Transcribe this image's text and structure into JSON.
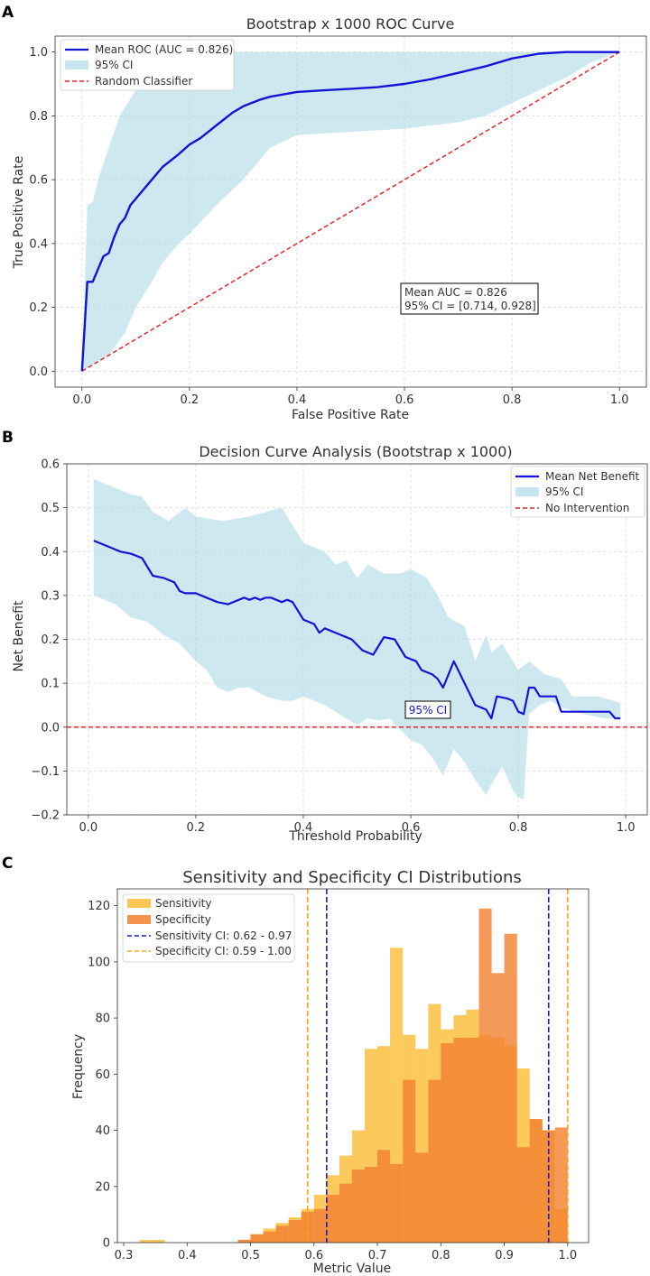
{
  "chart_data": [
    {
      "panel": "A",
      "type": "line",
      "title": "Bootstrap x 1000 ROC Curve",
      "xlabel": "False Positive Rate",
      "ylabel": "True Positive Rate",
      "xlim": [
        -0.05,
        1.05
      ],
      "ylim": [
        -0.05,
        1.05
      ],
      "xticks": [
        0.0,
        0.2,
        0.4,
        0.6,
        0.8,
        1.0
      ],
      "yticks": [
        0.0,
        0.2,
        0.4,
        0.6,
        0.8,
        1.0
      ],
      "tick_labels_x": [
        "0.0",
        "0.2",
        "0.4",
        "0.6",
        "0.8",
        "1.0"
      ],
      "tick_labels_y": [
        "0.0",
        "0.2",
        "0.4",
        "0.6",
        "0.8",
        "1.0"
      ],
      "legend": [
        "Mean ROC (AUC = 0.826)",
        "95% CI",
        "Random Classifier"
      ],
      "annotation": [
        "Mean AUC = 0.826",
        "95% CI = [0.714, 0.928]"
      ],
      "mean": {
        "x": [
          0,
          0.01,
          0.02,
          0.03,
          0.04,
          0.05,
          0.06,
          0.07,
          0.08,
          0.09,
          0.1,
          0.12,
          0.15,
          0.18,
          0.2,
          0.22,
          0.25,
          0.28,
          0.3,
          0.33,
          0.35,
          0.4,
          0.45,
          0.5,
          0.55,
          0.6,
          0.65,
          0.7,
          0.75,
          0.8,
          0.85,
          0.9,
          0.95,
          1.0
        ],
        "y": [
          0,
          0.28,
          0.28,
          0.32,
          0.36,
          0.37,
          0.42,
          0.46,
          0.48,
          0.52,
          0.54,
          0.58,
          0.64,
          0.68,
          0.71,
          0.73,
          0.77,
          0.81,
          0.83,
          0.85,
          0.86,
          0.875,
          0.88,
          0.885,
          0.89,
          0.9,
          0.915,
          0.935,
          0.955,
          0.98,
          0.995,
          1.0,
          1.0,
          1.0
        ]
      },
      "ci_upper": {
        "x": [
          0,
          0.01,
          0.02,
          0.03,
          0.05,
          0.07,
          0.1,
          0.13,
          0.15,
          0.2,
          0.25,
          0.3,
          0.4,
          0.6,
          0.8,
          1.0
        ],
        "y": [
          0,
          0.52,
          0.53,
          0.6,
          0.7,
          0.8,
          0.88,
          0.94,
          0.97,
          0.99,
          1.0,
          1.0,
          1.0,
          1.0,
          1.0,
          1.0
        ]
      },
      "ci_lower": {
        "x": [
          0,
          0.03,
          0.05,
          0.08,
          0.1,
          0.13,
          0.15,
          0.18,
          0.2,
          0.25,
          0.3,
          0.35,
          0.4,
          0.5,
          0.6,
          0.7,
          0.75,
          0.8,
          0.85,
          0.9,
          0.95,
          1.0
        ],
        "y": [
          0,
          0.03,
          0.05,
          0.12,
          0.2,
          0.28,
          0.34,
          0.4,
          0.43,
          0.52,
          0.6,
          0.7,
          0.74,
          0.75,
          0.76,
          0.78,
          0.8,
          0.84,
          0.88,
          0.92,
          0.97,
          1.0
        ]
      }
    },
    {
      "panel": "B",
      "type": "line",
      "title": "Decision Curve Analysis (Bootstrap x 1000)",
      "xlabel": "Threshold Probability",
      "ylabel": "Net Benefit",
      "xlim": [
        -0.04,
        1.04
      ],
      "ylim": [
        -0.2,
        0.6
      ],
      "xticks": [
        0.0,
        0.2,
        0.4,
        0.6,
        0.8,
        1.0
      ],
      "yticks": [
        -0.2,
        -0.1,
        0.0,
        0.1,
        0.2,
        0.3,
        0.4,
        0.5,
        0.6
      ],
      "tick_labels_x": [
        "0.0",
        "0.2",
        "0.4",
        "0.6",
        "0.8",
        "1.0"
      ],
      "tick_labels_y": [
        "−0.2",
        "−0.1",
        "0.0",
        "0.1",
        "0.2",
        "0.3",
        "0.4",
        "0.5",
        "0.6"
      ],
      "legend": [
        "Mean Net Benefit",
        "95% CI",
        "No Intervention"
      ],
      "annotation": "95% CI",
      "mean": {
        "x": [
          0.01,
          0.04,
          0.06,
          0.08,
          0.1,
          0.12,
          0.14,
          0.16,
          0.17,
          0.18,
          0.2,
          0.22,
          0.24,
          0.26,
          0.28,
          0.29,
          0.3,
          0.31,
          0.32,
          0.33,
          0.34,
          0.36,
          0.37,
          0.38,
          0.4,
          0.42,
          0.43,
          0.44,
          0.47,
          0.49,
          0.51,
          0.52,
          0.53,
          0.55,
          0.57,
          0.59,
          0.61,
          0.62,
          0.64,
          0.65,
          0.66,
          0.68,
          0.7,
          0.72,
          0.74,
          0.75,
          0.76,
          0.78,
          0.79,
          0.8,
          0.81,
          0.82,
          0.83,
          0.84,
          0.86,
          0.87,
          0.88,
          0.9,
          0.93,
          0.96,
          0.97,
          0.98,
          0.99
        ],
        "y": [
          0.425,
          0.41,
          0.4,
          0.395,
          0.385,
          0.345,
          0.34,
          0.33,
          0.31,
          0.305,
          0.305,
          0.295,
          0.285,
          0.28,
          0.29,
          0.295,
          0.29,
          0.295,
          0.29,
          0.295,
          0.295,
          0.285,
          0.29,
          0.285,
          0.245,
          0.235,
          0.215,
          0.225,
          0.21,
          0.2,
          0.175,
          0.17,
          0.165,
          0.205,
          0.2,
          0.16,
          0.15,
          0.13,
          0.12,
          0.11,
          0.09,
          0.15,
          0.1,
          0.05,
          0.04,
          0.02,
          0.07,
          0.065,
          0.06,
          0.035,
          0.03,
          0.09,
          0.09,
          0.07,
          0.07,
          0.07,
          0.035,
          0.035,
          0.035,
          0.035,
          0.035,
          0.02,
          0.02
        ]
      },
      "ci_upper": {
        "x": [
          0.01,
          0.04,
          0.08,
          0.1,
          0.12,
          0.15,
          0.18,
          0.2,
          0.25,
          0.3,
          0.33,
          0.36,
          0.38,
          0.4,
          0.44,
          0.46,
          0.48,
          0.5,
          0.52,
          0.55,
          0.58,
          0.6,
          0.63,
          0.65,
          0.67,
          0.7,
          0.72,
          0.74,
          0.75,
          0.77,
          0.8,
          0.82,
          0.85,
          0.88,
          0.9,
          0.95,
          0.99
        ],
        "y": [
          0.565,
          0.55,
          0.53,
          0.525,
          0.49,
          0.47,
          0.5,
          0.48,
          0.47,
          0.48,
          0.49,
          0.5,
          0.46,
          0.42,
          0.4,
          0.37,
          0.38,
          0.34,
          0.37,
          0.35,
          0.35,
          0.36,
          0.34,
          0.3,
          0.25,
          0.23,
          0.15,
          0.21,
          0.17,
          0.19,
          0.13,
          0.15,
          0.12,
          0.11,
          0.07,
          0.07,
          0.055
        ]
      },
      "ci_lower": {
        "x": [
          0.01,
          0.05,
          0.08,
          0.11,
          0.14,
          0.17,
          0.2,
          0.22,
          0.24,
          0.26,
          0.28,
          0.3,
          0.33,
          0.36,
          0.38,
          0.4,
          0.44,
          0.46,
          0.48,
          0.5,
          0.52,
          0.54,
          0.56,
          0.58,
          0.6,
          0.62,
          0.64,
          0.66,
          0.68,
          0.7,
          0.72,
          0.74,
          0.75,
          0.77,
          0.79,
          0.8,
          0.81,
          0.82,
          0.84,
          0.86,
          0.88,
          0.92,
          0.96,
          0.99
        ],
        "y": [
          0.3,
          0.28,
          0.25,
          0.24,
          0.21,
          0.19,
          0.15,
          0.13,
          0.09,
          0.08,
          0.09,
          0.09,
          0.07,
          0.06,
          0.06,
          0.07,
          0.05,
          0.035,
          0.02,
          0.005,
          0.02,
          0.015,
          0.02,
          -0.005,
          -0.03,
          -0.04,
          -0.07,
          -0.11,
          -0.05,
          -0.08,
          -0.12,
          -0.155,
          -0.13,
          -0.09,
          -0.145,
          -0.16,
          -0.165,
          0.03,
          0.05,
          0.06,
          0.045,
          0.03,
          0.02,
          0.02
        ]
      }
    },
    {
      "panel": "C",
      "type": "bar",
      "title": "Sensitivity and Specificity CI Distributions",
      "xlabel": "Metric Value",
      "ylabel": "Frequency",
      "xlim": [
        0.29,
        1.033
      ],
      "ylim": [
        0,
        126
      ],
      "xticks": [
        0.3,
        0.4,
        0.5,
        0.6,
        0.7,
        0.8,
        0.9,
        1.0
      ],
      "yticks": [
        0,
        20,
        40,
        60,
        80,
        100,
        120
      ],
      "tick_labels_x": [
        "0.3",
        "0.4",
        "0.5",
        "0.6",
        "0.7",
        "0.8",
        "0.9",
        "1.0"
      ],
      "tick_labels_y": [
        "0",
        "20",
        "40",
        "60",
        "80",
        "100",
        "120"
      ],
      "legend": [
        "Sensitivity",
        "Specificity",
        "Sensitivity CI: 0.62 - 0.97",
        "Specificity CI: 0.59 - 1.00"
      ],
      "sensitivity": {
        "bin_start": [
          0.325,
          0.48,
          0.5,
          0.52,
          0.54,
          0.56,
          0.58,
          0.6,
          0.62,
          0.64,
          0.66,
          0.68,
          0.7,
          0.72,
          0.74,
          0.76,
          0.78,
          0.8,
          0.82,
          0.84,
          0.86,
          0.88,
          0.9,
          0.92,
          0.94,
          0.96,
          0.98
        ],
        "bin_end": [
          0.365,
          0.5,
          0.52,
          0.54,
          0.56,
          0.58,
          0.6,
          0.62,
          0.64,
          0.66,
          0.68,
          0.7,
          0.72,
          0.74,
          0.76,
          0.78,
          0.8,
          0.82,
          0.84,
          0.86,
          0.88,
          0.9,
          0.92,
          0.94,
          0.96,
          0.98,
          1.0
        ],
        "counts": [
          1,
          1,
          3,
          5,
          7,
          9,
          12,
          17,
          24,
          31,
          40,
          69,
          70,
          105,
          74,
          69,
          85,
          76,
          81,
          83,
          74,
          73,
          70,
          62,
          44,
          40,
          12
        ]
      },
      "specificity": {
        "bin_start": [
          0.48,
          0.5,
          0.52,
          0.54,
          0.56,
          0.58,
          0.6,
          0.62,
          0.64,
          0.66,
          0.68,
          0.7,
          0.72,
          0.74,
          0.76,
          0.78,
          0.8,
          0.82,
          0.84,
          0.86,
          0.88,
          0.9,
          0.92,
          0.94,
          0.96,
          0.98
        ],
        "bin_end": [
          0.5,
          0.52,
          0.54,
          0.56,
          0.58,
          0.6,
          0.62,
          0.64,
          0.66,
          0.68,
          0.7,
          0.72,
          0.74,
          0.76,
          0.78,
          0.8,
          0.82,
          0.84,
          0.86,
          0.88,
          0.9,
          0.92,
          0.94,
          0.96,
          0.98,
          1.0
        ],
        "counts": [
          1,
          3,
          4,
          6,
          8,
          11,
          12,
          17,
          21,
          26,
          27,
          33,
          28,
          58,
          32,
          58,
          71,
          73,
          73,
          119,
          96,
          110,
          34,
          44,
          40,
          41
        ]
      },
      "ci_lines": {
        "sensitivity": [
          0.62,
          0.97
        ],
        "specificity": [
          0.59,
          1.0
        ]
      }
    }
  ],
  "panel_letters": [
    "A",
    "B",
    "C"
  ],
  "colors": {
    "mean_line": "#1414d8",
    "ci_fill": "#add8e6",
    "random_line": "#e8262a",
    "sensitivity": "#fbc34a",
    "specificity": "#f27f2f",
    "sens_ci": "#1a1ad6",
    "spec_ci": "#f8a21e"
  }
}
